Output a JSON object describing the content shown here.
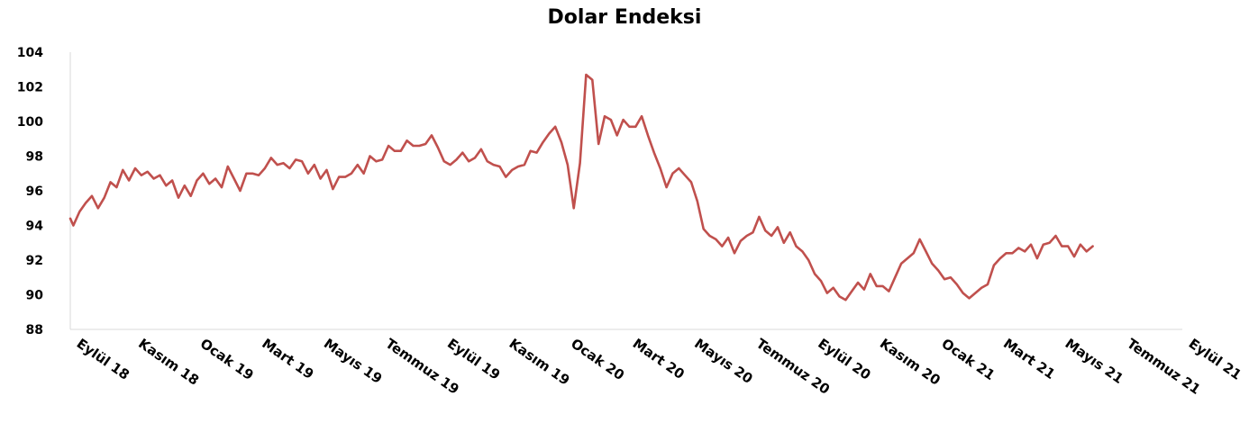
{
  "chart_data": {
    "type": "line",
    "title": "Dolar Endeksi",
    "xlabel": "",
    "ylabel": "",
    "ylim": [
      88,
      104
    ],
    "yticks": [
      "104",
      "102",
      "100",
      "98",
      "96",
      "94",
      "92",
      "90",
      "88"
    ],
    "ytick_values": [
      104,
      102,
      100,
      98,
      96,
      94,
      92,
      90,
      88
    ],
    "xticks": [
      "Eylül 18",
      "Kasım 18",
      "Ocak 19",
      "Mart 19",
      "Mayıs 19",
      "Temmuz 19",
      "Eylül 19",
      "Kasım 19",
      "Ocak 20",
      "Mart 20",
      "Mayıs 20",
      "Temmuz 20",
      "Eylül 20",
      "Kasım 20",
      "Ocak 21",
      "Mart 21",
      "Mayıs 21",
      "Temmuz 21",
      "Eylül 21"
    ],
    "grid": false,
    "legend": "none",
    "line_color": "#c0504d",
    "x_unit": "month index (0 = Eylül 18, 36 = Eylül 21)",
    "series": [
      {
        "values": [
          [
            0.0,
            94.4
          ],
          [
            0.1,
            94.0
          ],
          [
            0.3,
            94.8
          ],
          [
            0.5,
            95.3
          ],
          [
            0.7,
            95.7
          ],
          [
            0.9,
            95.0
          ],
          [
            1.1,
            95.6
          ],
          [
            1.3,
            96.5
          ],
          [
            1.5,
            96.2
          ],
          [
            1.7,
            97.2
          ],
          [
            1.9,
            96.6
          ],
          [
            2.1,
            97.3
          ],
          [
            2.3,
            96.9
          ],
          [
            2.5,
            97.1
          ],
          [
            2.7,
            96.7
          ],
          [
            2.9,
            96.9
          ],
          [
            3.1,
            96.3
          ],
          [
            3.3,
            96.6
          ],
          [
            3.5,
            95.6
          ],
          [
            3.7,
            96.3
          ],
          [
            3.9,
            95.7
          ],
          [
            4.1,
            96.6
          ],
          [
            4.3,
            97.0
          ],
          [
            4.5,
            96.4
          ],
          [
            4.7,
            96.7
          ],
          [
            4.9,
            96.2
          ],
          [
            5.1,
            97.4
          ],
          [
            5.3,
            96.7
          ],
          [
            5.5,
            96.0
          ],
          [
            5.7,
            97.0
          ],
          [
            5.9,
            97.0
          ],
          [
            6.1,
            96.9
          ],
          [
            6.3,
            97.3
          ],
          [
            6.5,
            97.9
          ],
          [
            6.7,
            97.5
          ],
          [
            6.9,
            97.6
          ],
          [
            7.1,
            97.3
          ],
          [
            7.3,
            97.8
          ],
          [
            7.5,
            97.7
          ],
          [
            7.7,
            97.0
          ],
          [
            7.9,
            97.5
          ],
          [
            8.1,
            96.7
          ],
          [
            8.3,
            97.2
          ],
          [
            8.5,
            96.1
          ],
          [
            8.7,
            96.8
          ],
          [
            8.9,
            96.8
          ],
          [
            9.1,
            97.0
          ],
          [
            9.3,
            97.5
          ],
          [
            9.5,
            97.0
          ],
          [
            9.7,
            98.0
          ],
          [
            9.9,
            97.7
          ],
          [
            10.1,
            97.8
          ],
          [
            10.3,
            98.6
          ],
          [
            10.5,
            98.3
          ],
          [
            10.7,
            98.3
          ],
          [
            10.9,
            98.9
          ],
          [
            11.1,
            98.6
          ],
          [
            11.3,
            98.6
          ],
          [
            11.5,
            98.7
          ],
          [
            11.7,
            99.2
          ],
          [
            11.9,
            98.5
          ],
          [
            12.1,
            97.7
          ],
          [
            12.3,
            97.5
          ],
          [
            12.5,
            97.8
          ],
          [
            12.7,
            98.2
          ],
          [
            12.9,
            97.7
          ],
          [
            13.1,
            97.9
          ],
          [
            13.3,
            98.4
          ],
          [
            13.5,
            97.7
          ],
          [
            13.7,
            97.5
          ],
          [
            13.9,
            97.4
          ],
          [
            14.1,
            96.8
          ],
          [
            14.3,
            97.2
          ],
          [
            14.5,
            97.4
          ],
          [
            14.7,
            97.5
          ],
          [
            14.9,
            98.3
          ],
          [
            15.1,
            98.2
          ],
          [
            15.3,
            98.8
          ],
          [
            15.5,
            99.3
          ],
          [
            15.7,
            99.7
          ],
          [
            15.9,
            98.8
          ],
          [
            16.1,
            97.5
          ],
          [
            16.3,
            95.0
          ],
          [
            16.5,
            97.6
          ],
          [
            16.7,
            102.7
          ],
          [
            16.9,
            102.4
          ],
          [
            17.1,
            98.7
          ],
          [
            17.3,
            100.3
          ],
          [
            17.5,
            100.1
          ],
          [
            17.7,
            99.2
          ],
          [
            17.9,
            100.1
          ],
          [
            18.1,
            99.7
          ],
          [
            18.3,
            99.7
          ],
          [
            18.5,
            100.3
          ],
          [
            18.7,
            99.2
          ],
          [
            18.9,
            98.2
          ],
          [
            19.1,
            97.3
          ],
          [
            19.3,
            96.2
          ],
          [
            19.5,
            97.0
          ],
          [
            19.7,
            97.3
          ],
          [
            19.9,
            96.9
          ],
          [
            20.1,
            96.5
          ],
          [
            20.3,
            95.4
          ],
          [
            20.5,
            93.8
          ],
          [
            20.7,
            93.4
          ],
          [
            20.9,
            93.2
          ],
          [
            21.1,
            92.8
          ],
          [
            21.3,
            93.3
          ],
          [
            21.5,
            92.4
          ],
          [
            21.7,
            93.1
          ],
          [
            21.9,
            93.4
          ],
          [
            22.1,
            93.6
          ],
          [
            22.3,
            94.5
          ],
          [
            22.5,
            93.7
          ],
          [
            22.7,
            93.4
          ],
          [
            22.9,
            93.9
          ],
          [
            23.1,
            93.0
          ],
          [
            23.3,
            93.6
          ],
          [
            23.5,
            92.8
          ],
          [
            23.7,
            92.5
          ],
          [
            23.9,
            92.0
          ],
          [
            24.1,
            91.2
          ],
          [
            24.3,
            90.8
          ],
          [
            24.5,
            90.1
          ],
          [
            24.7,
            90.4
          ],
          [
            24.9,
            89.9
          ],
          [
            25.1,
            89.7
          ],
          [
            25.3,
            90.2
          ],
          [
            25.5,
            90.7
          ],
          [
            25.7,
            90.3
          ],
          [
            25.9,
            91.2
          ],
          [
            26.1,
            90.5
          ],
          [
            26.3,
            90.5
          ],
          [
            26.5,
            90.2
          ],
          [
            26.7,
            91.0
          ],
          [
            26.9,
            91.8
          ],
          [
            27.1,
            92.1
          ],
          [
            27.3,
            92.4
          ],
          [
            27.5,
            93.2
          ],
          [
            27.7,
            92.5
          ],
          [
            27.9,
            91.8
          ],
          [
            28.1,
            91.4
          ],
          [
            28.3,
            90.9
          ],
          [
            28.5,
            91.0
          ],
          [
            28.7,
            90.6
          ],
          [
            28.9,
            90.1
          ],
          [
            29.1,
            89.8
          ],
          [
            29.3,
            90.1
          ],
          [
            29.5,
            90.4
          ],
          [
            29.7,
            90.6
          ],
          [
            29.9,
            91.7
          ],
          [
            30.1,
            92.1
          ],
          [
            30.3,
            92.4
          ],
          [
            30.5,
            92.4
          ],
          [
            30.7,
            92.7
          ],
          [
            30.9,
            92.5
          ],
          [
            31.1,
            92.9
          ],
          [
            31.3,
            92.1
          ],
          [
            31.5,
            92.9
          ],
          [
            31.7,
            93.0
          ],
          [
            31.9,
            93.4
          ],
          [
            32.1,
            92.8
          ],
          [
            32.3,
            92.8
          ],
          [
            32.5,
            92.2
          ],
          [
            32.7,
            92.9
          ],
          [
            32.9,
            92.5
          ],
          [
            33.1,
            92.8
          ]
        ]
      }
    ]
  }
}
